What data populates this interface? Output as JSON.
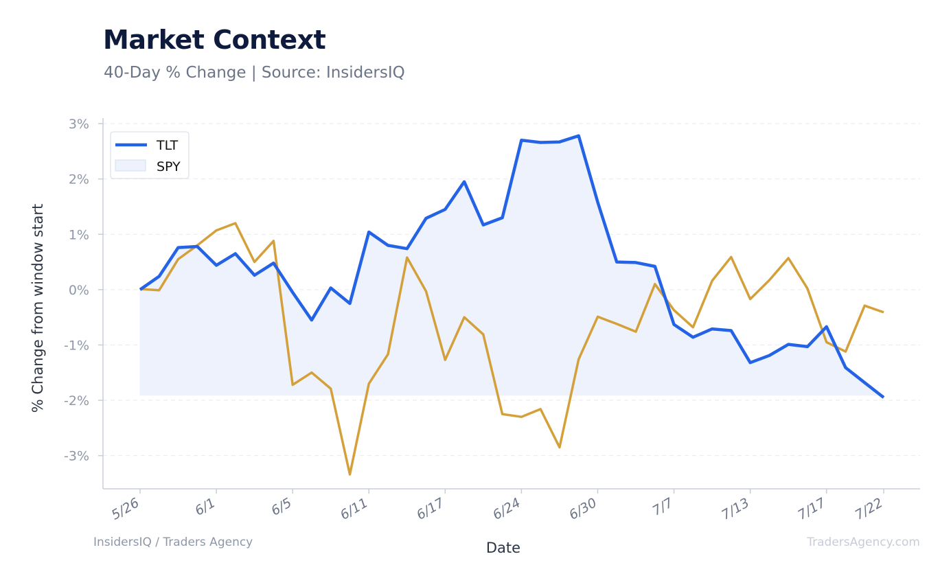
{
  "header": {
    "title": "Market Context",
    "subtitle": "40-Day % Change | Source: InsidersIQ"
  },
  "footer": {
    "left": "InsidersIQ / Traders Agency",
    "right": "TradersAgency.com"
  },
  "colors": {
    "tlt": "#2563e6",
    "spy": "#d4a03a",
    "fill": "#edf2fc",
    "grid": "#e6e9ef",
    "axis": "#c8cdd8"
  },
  "chart_data": {
    "type": "line",
    "xlabel": "Date",
    "ylabel": "% Change from window start",
    "ylim": [
      -3.6,
      3.1
    ],
    "yticks": [
      3,
      2,
      1,
      0,
      -1,
      -2,
      -3
    ],
    "ytick_labels": [
      "3%",
      "2%",
      "1%",
      "0%",
      "-1%",
      "-2%",
      "-3%"
    ],
    "xtick_labels": [
      "5/26",
      "6/1",
      "6/5",
      "6/11",
      "6/17",
      "6/24",
      "6/30",
      "7/7",
      "7/13",
      "7/17",
      "7/22"
    ],
    "xtick_index": [
      0,
      4,
      8,
      12,
      16,
      20,
      24,
      28,
      32,
      36,
      39
    ],
    "grid": true,
    "legend_position": "top-left",
    "legend": [
      "TLT",
      "SPY"
    ],
    "series": [
      {
        "name": "TLT",
        "values": [
          0.0,
          0.24,
          0.76,
          0.78,
          0.44,
          0.65,
          0.26,
          0.48,
          -0.05,
          -0.55,
          0.03,
          -0.25,
          1.04,
          0.8,
          0.74,
          1.29,
          1.45,
          1.95,
          1.17,
          1.3,
          2.7,
          2.66,
          2.67,
          2.78,
          1.58,
          0.5,
          0.49,
          0.42,
          -0.63,
          -0.86,
          -0.71,
          -0.74,
          -1.32,
          -1.19,
          -0.99,
          -1.03,
          -0.67,
          -1.41,
          -1.68,
          -1.95
        ]
      },
      {
        "name": "SPY",
        "values": [
          0.01,
          -0.01,
          0.55,
          0.8,
          1.07,
          1.2,
          0.5,
          0.88,
          -1.72,
          -1.5,
          -1.79,
          -3.34,
          -1.7,
          -1.17,
          0.58,
          -0.03,
          -1.27,
          -0.5,
          -0.81,
          -2.25,
          -2.3,
          -2.16,
          -2.85,
          -1.26,
          -0.49,
          -0.62,
          -0.76,
          0.1,
          -0.37,
          -0.68,
          0.16,
          0.59,
          -0.17,
          0.17,
          0.57,
          0.02,
          -0.95,
          -1.12,
          -0.29,
          -0.41
        ]
      }
    ],
    "fill_baseline": -1.91
  }
}
